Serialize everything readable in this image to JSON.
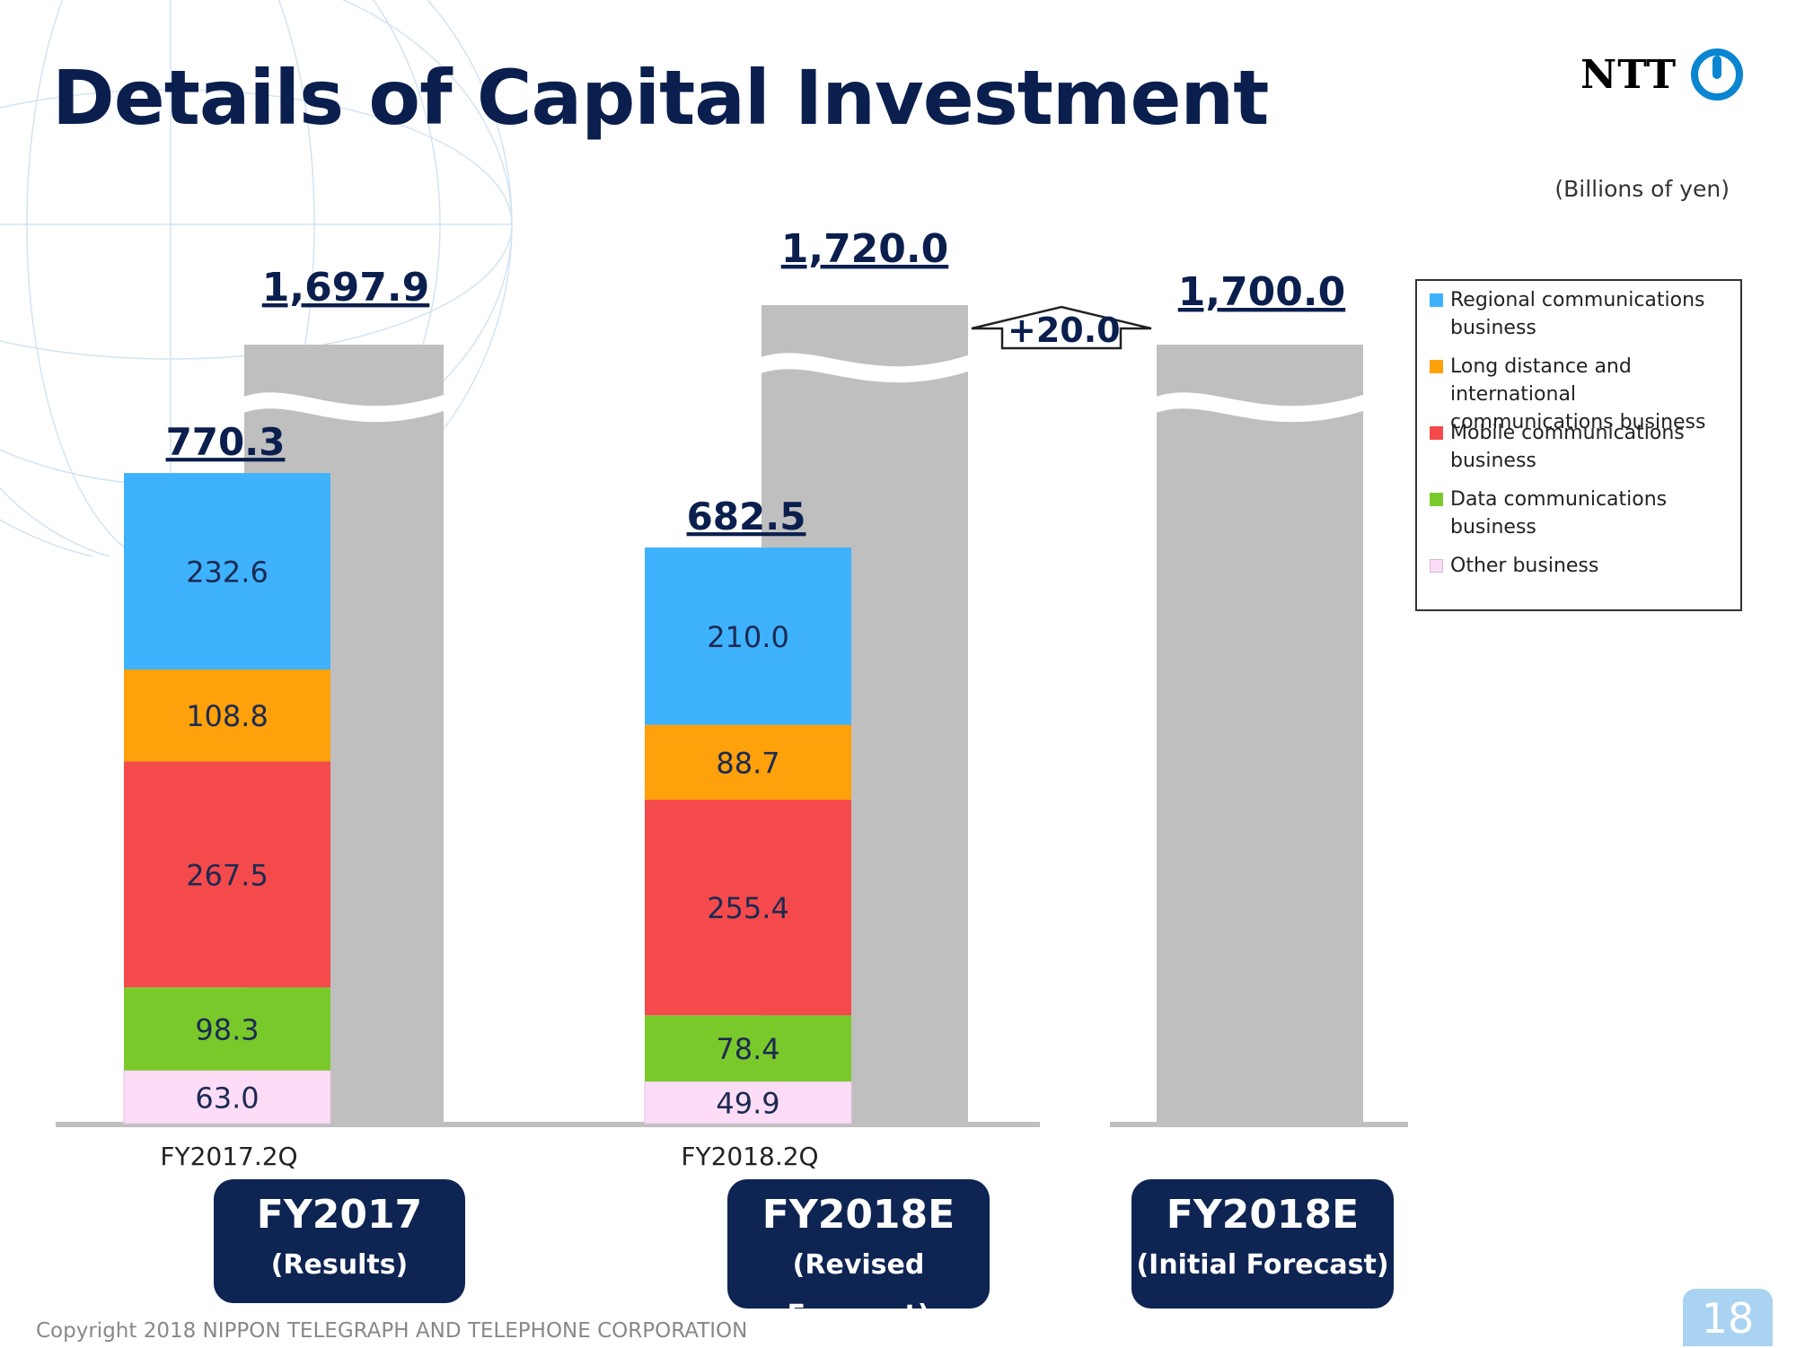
{
  "slide": {
    "title": "Details of Capital Investment",
    "unit": "(Billions of yen)",
    "logo_text": "NTT",
    "footer": "Copyright 2018 NIPPON TELEGRAPH AND TELEPHONE CORPORATION",
    "page_number": "18"
  },
  "legend": [
    {
      "label": "Regional communications business",
      "color": "#3eb2fd"
    },
    {
      "label": "Long distance and international communications business",
      "color": "#fea10a"
    },
    {
      "label": "Mobile communications business",
      "color": "#f54a4b"
    },
    {
      "label": "Data communications business",
      "color": "#7ac92b"
    },
    {
      "label": "Other business",
      "color": "#fcdcf7"
    }
  ],
  "periods": [
    {
      "label": "FY2017",
      "sub": "(Results)"
    },
    {
      "label": "FY2018E",
      "sub": "(Revised Forecast)"
    },
    {
      "label": "FY2018E",
      "sub": "(Initial Forecast)"
    }
  ],
  "delta_label": "+20.0",
  "chart_data": {
    "type": "bar",
    "stacked": true,
    "categories": [
      "FY2017.2Q",
      "FY2018.2Q"
    ],
    "series": [
      {
        "name": "Other business",
        "values": [
          63.0,
          49.9
        ],
        "labels": [
          "63.0",
          "49.9"
        ],
        "color": "#fcdcf7"
      },
      {
        "name": "Data communications business",
        "values": [
          98.3,
          78.4
        ],
        "labels": [
          "98.3",
          "78.4"
        ],
        "color": "#7ac92b"
      },
      {
        "name": "Mobile communications business",
        "values": [
          267.5,
          255.4
        ],
        "labels": [
          "267.5",
          "255.4"
        ],
        "color": "#f54a4b"
      },
      {
        "name": "Long distance and international communications business",
        "values": [
          108.8,
          88.7
        ],
        "labels": [
          "108.8",
          "88.7"
        ],
        "color": "#fea10a"
      },
      {
        "name": "Regional communications business",
        "values": [
          232.6,
          210.0
        ],
        "labels": [
          "232.6",
          "210.0"
        ],
        "color": "#3eb2fd"
      }
    ],
    "half_year_totals": [
      770.3,
      682.5
    ],
    "half_year_total_labels": [
      "770.3",
      "682.5"
    ],
    "full_year": [
      {
        "period": "FY2017 (Results)",
        "value": 1697.9,
        "label": "1,697.9"
      },
      {
        "period": "FY2018E (Revised Forecast)",
        "value": 1720.0,
        "label": "1,720.0"
      },
      {
        "period": "FY2018E (Initial Forecast)",
        "value": 1700.0,
        "label": "1,700.0"
      }
    ],
    "full_year_bar_color": "#bfbfbf",
    "axis_break": true
  }
}
